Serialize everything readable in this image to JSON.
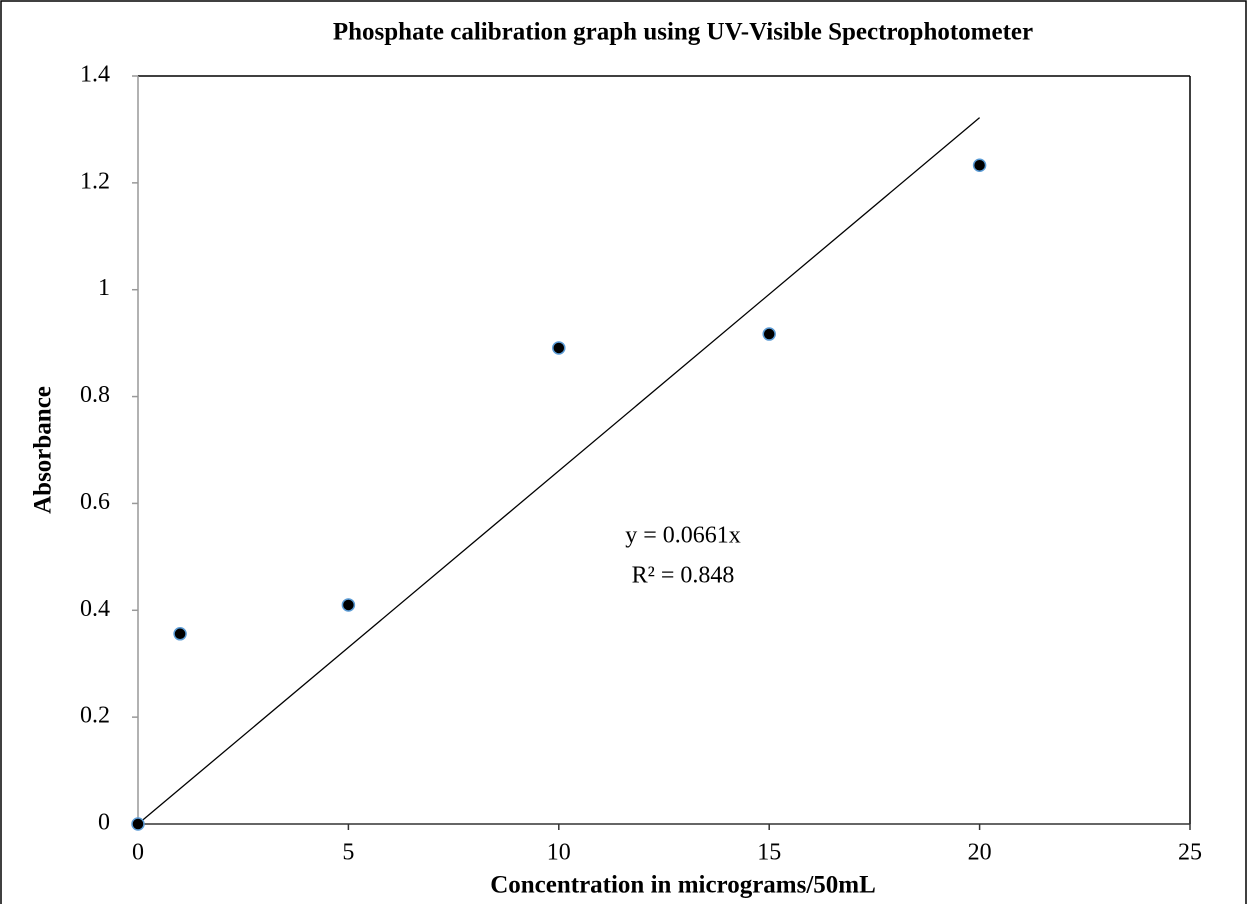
{
  "chart_data": {
    "type": "scatter",
    "title": "Phosphate calibration graph using UV-Visible Spectrophotometer",
    "x_label": "Concentration in micrograms/50mL",
    "y_label": "Absorbance",
    "series": [
      {
        "name": "Absorbance",
        "color": "#000000",
        "x": [
          0,
          1,
          5,
          10,
          15,
          20
        ],
        "values": [
          0,
          0.356,
          0.41,
          0.891,
          0.917,
          1.233
        ]
      }
    ],
    "trendline": {
      "x": [
        0,
        20
      ],
      "values": [
        0,
        1.322
      ],
      "color": "#000000"
    },
    "annotations": [
      "y = 0.0661x",
      "R² = 0.848"
    ],
    "xlim": [
      0,
      25
    ],
    "xticks": [
      0,
      5,
      10,
      15,
      20,
      25
    ],
    "ylim": [
      0,
      1.4
    ],
    "yticks": [
      0,
      0.2,
      0.4,
      0.6,
      0.8,
      1,
      1.2,
      1.4
    ]
  }
}
